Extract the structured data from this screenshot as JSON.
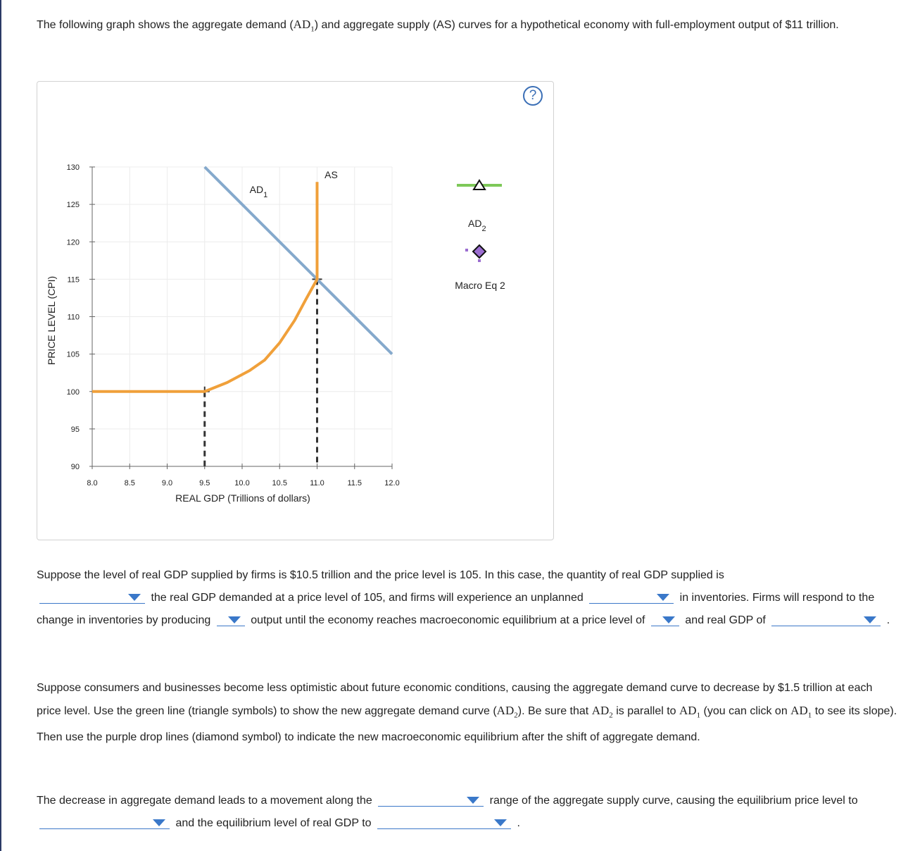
{
  "intro": {
    "text_before": "The following graph shows the aggregate demand (",
    "ad1_main": "AD",
    "ad1_sub": "1",
    "text_after": ") and aggregate supply (AS) curves for a hypothetical economy with full-employment output of $11 trillion."
  },
  "help_label": "?",
  "chart_data": {
    "type": "line",
    "xlabel": "REAL GDP (Trillions of dollars)",
    "ylabel": "PRICE LEVEL (CPI)",
    "xlim": [
      8.0,
      12.0
    ],
    "ylim": [
      90,
      130
    ],
    "x_ticks": [
      "8.0",
      "8.5",
      "9.0",
      "9.5",
      "10.0",
      "10.5",
      "11.0",
      "11.5",
      "12.0"
    ],
    "y_ticks": [
      "90",
      "95",
      "100",
      "105",
      "110",
      "115",
      "120",
      "125",
      "130"
    ],
    "grid": true,
    "series": [
      {
        "name": "AD",
        "name_sub": "1",
        "color": "#85a9cc",
        "points": [
          [
            9.5,
            130
          ],
          [
            12.0,
            105
          ]
        ]
      },
      {
        "name": "AS",
        "color": "#f0a03a",
        "points": [
          [
            8.0,
            100
          ],
          [
            9.5,
            100
          ],
          [
            9.8,
            101.2
          ],
          [
            10.1,
            102.8
          ],
          [
            10.3,
            104.2
          ],
          [
            10.5,
            106.5
          ],
          [
            10.7,
            109.5
          ],
          [
            10.85,
            112.3
          ],
          [
            11.0,
            115
          ],
          [
            11.0,
            128
          ]
        ]
      }
    ],
    "drop_lines": [
      {
        "x": 9.5,
        "y": 100
      },
      {
        "x": 11.0,
        "y": 115
      }
    ],
    "palette": [
      {
        "label": "AD",
        "label_sub": "2",
        "symbol": "triangle-icon",
        "color": "#7dc858"
      },
      {
        "label": "Macro Eq 2",
        "symbol": "diamond-icon",
        "color": "#9b6dd0"
      }
    ]
  },
  "question1": {
    "t1": "Suppose the level of real GDP supplied by firms is $10.5 trillion and the price level is 105. In this case, the quantity of real GDP supplied is",
    "t2": "the real GDP demanded at a price level of 105, and firms will experience an unplanned",
    "t3": "in inventories. Firms will respond to the change in inventories by producing",
    "t4": "output until the economy reaches macroeconomic equilibrium at a price level of",
    "t5": "and real GDP of",
    "t6": "."
  },
  "question2": {
    "t1": "Suppose consumers and businesses become less optimistic about future economic conditions, causing the aggregate demand curve to decrease by $1.5 trillion at each price level. Use the green line (triangle symbols) to show the new aggregate demand curve (",
    "ad2_main": "AD",
    "ad2_sub": "2",
    "t2": "). Be sure that",
    "t3": "is parallel to",
    "ad1_main": "AD",
    "ad1_sub": "1",
    "t4": "(you can click on",
    "t5": "to see its slope). Then use the purple drop lines (diamond symbol) to indicate the new macroeconomic equilibrium after the shift of aggregate demand."
  },
  "question3": {
    "t1": "The decrease in aggregate demand leads to a movement along the",
    "t2": "range of the aggregate supply curve, causing the equilibrium price level to",
    "t3": "and the equilibrium level of real GDP to",
    "t4": "."
  }
}
